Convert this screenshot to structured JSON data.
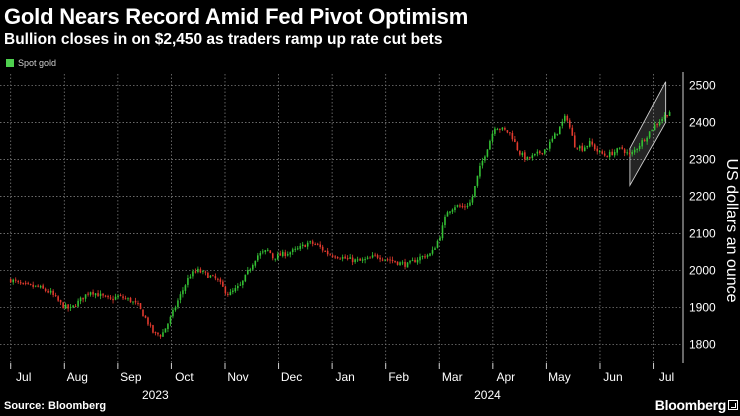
{
  "header": {
    "title": "Gold Nears Record Amid Fed Pivot Optimism",
    "subtitle": "Bullion closes in on $2,450 as traders ramp up rate cut bets"
  },
  "legend": {
    "label": "Spot gold",
    "color": "#4fd04f"
  },
  "footer": {
    "source": "Source: Bloomberg",
    "brand": "Bloomberg"
  },
  "colors": {
    "up": "#34c134",
    "down": "#e23a2e",
    "grid": "#7a7a7a",
    "channel": "#d0d0d0"
  },
  "chart_data": {
    "type": "candlestick",
    "title": "Gold Nears Record Amid Fed Pivot Optimism",
    "series_name": "Spot gold",
    "ylabel": "US dollars an ounce",
    "ylim": [
      1750,
      2520
    ],
    "yticks": [
      1800,
      1900,
      2000,
      2100,
      2200,
      2300,
      2400,
      2500
    ],
    "month_labels": [
      "Jul",
      "Aug",
      "Sep",
      "Oct",
      "Nov",
      "Dec",
      "Jan",
      "Feb",
      "Mar",
      "Apr",
      "May",
      "Jun",
      "Jul"
    ],
    "year_labels": [
      {
        "label": "2023",
        "month_index": 2.7
      },
      {
        "label": "2024",
        "month_index": 8.9
      }
    ],
    "x_start_month_index": -0.2,
    "x_end_month_index": 12.55,
    "price_path": [
      [
        0.0,
        1975
      ],
      [
        0.3,
        1960
      ],
      [
        0.7,
        1955
      ],
      [
        1.0,
        1940
      ],
      [
        1.3,
        1905
      ],
      [
        1.5,
        1895
      ],
      [
        1.7,
        1915
      ],
      [
        2.0,
        1945
      ],
      [
        2.3,
        1930
      ],
      [
        2.5,
        1920
      ],
      [
        2.7,
        1930
      ],
      [
        3.0,
        1920
      ],
      [
        3.2,
        1905
      ],
      [
        3.4,
        1870
      ],
      [
        3.6,
        1830
      ],
      [
        3.8,
        1825
      ],
      [
        4.0,
        1865
      ],
      [
        4.2,
        1915
      ],
      [
        4.5,
        1985
      ],
      [
        4.7,
        2000
      ],
      [
        5.0,
        1985
      ],
      [
        5.2,
        1975
      ],
      [
        5.4,
        1945
      ],
      [
        5.5,
        1935
      ],
      [
        5.8,
        1960
      ],
      [
        6.0,
        2000
      ],
      [
        6.2,
        2040
      ],
      [
        6.5,
        2055
      ],
      [
        6.6,
        2035
      ],
      [
        6.9,
        2045
      ],
      [
        7.2,
        2055
      ],
      [
        7.5,
        2075
      ],
      [
        7.7,
        2070
      ],
      [
        8.0,
        2045
      ],
      [
        8.2,
        2040
      ],
      [
        8.5,
        2030
      ],
      [
        8.8,
        2025
      ],
      [
        9.0,
        2030
      ],
      [
        9.2,
        2040
      ],
      [
        9.5,
        2030
      ],
      [
        9.8,
        2020
      ],
      [
        10.0,
        2015
      ],
      [
        10.3,
        2035
      ],
      [
        10.6,
        2045
      ],
      [
        10.8,
        2090
      ],
      [
        11.0,
        2160
      ],
      [
        11.2,
        2175
      ],
      [
        11.4,
        2170
      ],
      [
        11.6,
        2185
      ],
      [
        11.8,
        2270
      ],
      [
        12.0,
        2330
      ],
      [
        12.2,
        2390
      ],
      [
        12.4,
        2380
      ],
      [
        12.6,
        2370
      ],
      [
        12.8,
        2320
      ],
      [
        13.0,
        2300
      ],
      [
        13.2,
        2310
      ],
      [
        13.5,
        2330
      ],
      [
        13.8,
        2380
      ],
      [
        14.0,
        2420
      ],
      [
        14.2,
        2340
      ],
      [
        14.4,
        2330
      ],
      [
        14.6,
        2345
      ],
      [
        14.8,
        2320
      ],
      [
        15.0,
        2310
      ],
      [
        15.2,
        2320
      ],
      [
        15.4,
        2330
      ],
      [
        15.6,
        2310
      ],
      [
        15.8,
        2335
      ],
      [
        16.0,
        2360
      ],
      [
        16.2,
        2390
      ],
      [
        16.5,
        2420
      ],
      [
        16.6,
        2430
      ]
    ],
    "channel": {
      "lower": [
        [
          15.6,
          2230
        ],
        [
          16.5,
          2400
        ]
      ],
      "upper": [
        [
          15.6,
          2330
        ],
        [
          16.5,
          2510
        ]
      ]
    }
  }
}
